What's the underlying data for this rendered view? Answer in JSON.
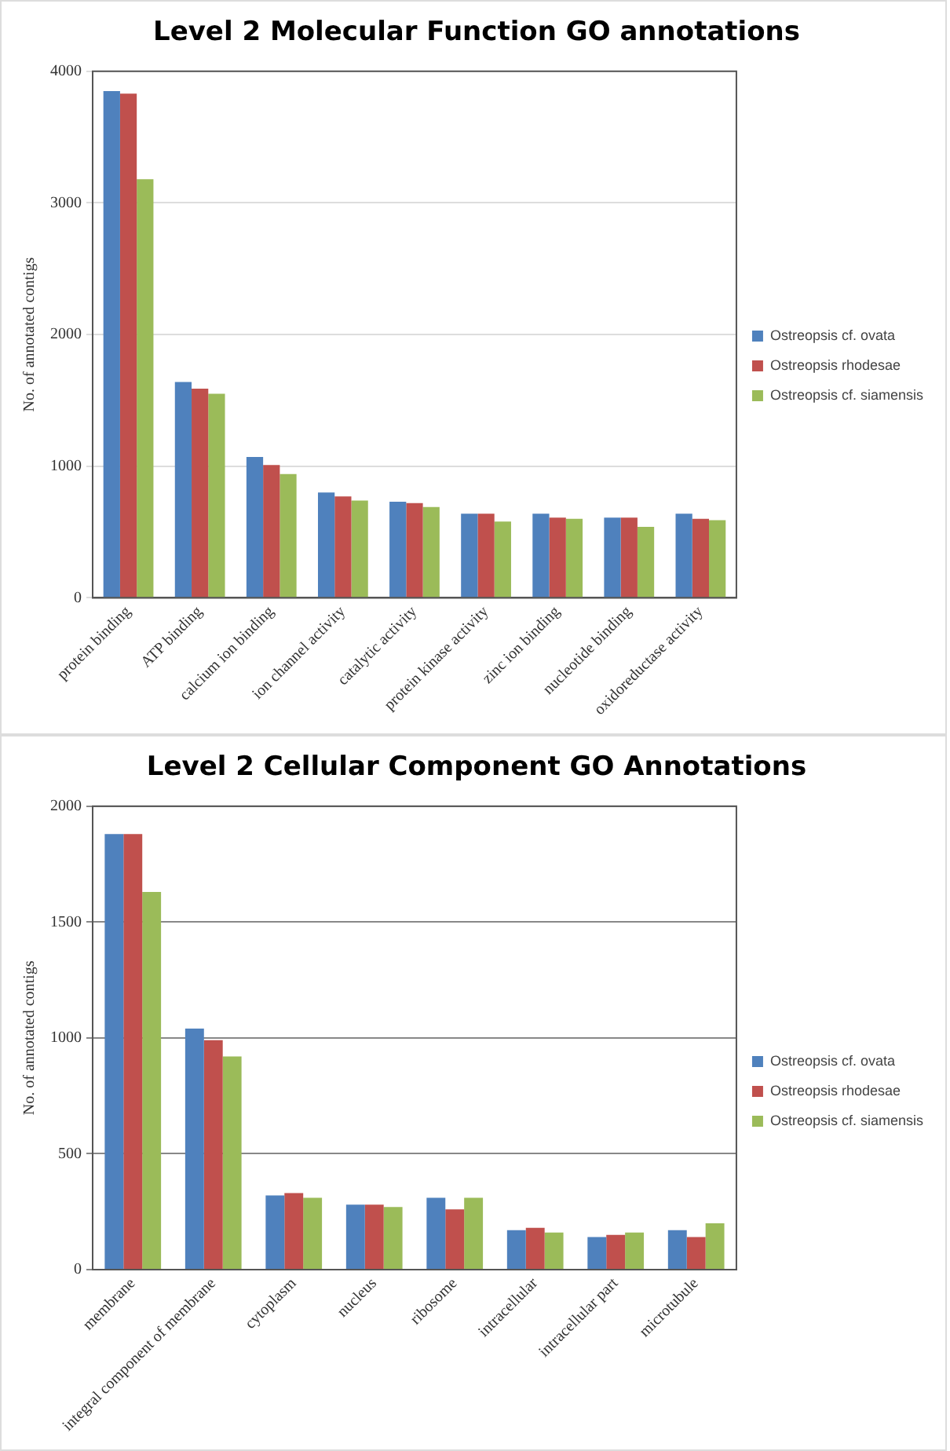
{
  "chart_data": [
    {
      "type": "bar",
      "title": "Level 2 Molecular Function GO annotations",
      "ylabel": "No. of annotated contigs",
      "categories": [
        "protein binding",
        "ATP binding",
        "calcium ion binding",
        "ion channel activity",
        "catalytic activity",
        "protein kinase activity",
        "zinc ion binding",
        "nucleotide binding",
        "oxidoreductase activity"
      ],
      "series": [
        {
          "name": "Ostreopsis cf. ovata",
          "color": "#4f81bd",
          "values": [
            3850,
            1640,
            1070,
            800,
            730,
            640,
            640,
            610,
            640
          ]
        },
        {
          "name": "Ostreopsis rhodesae",
          "color": "#c0504d",
          "values": [
            3830,
            1590,
            1010,
            770,
            720,
            640,
            610,
            610,
            600
          ]
        },
        {
          "name": "Ostreopsis cf. siamensis",
          "color": "#9bbb59",
          "values": [
            3180,
            1550,
            940,
            740,
            690,
            580,
            600,
            540,
            590
          ]
        }
      ],
      "ylim": [
        0,
        4000
      ],
      "yticks": [
        0,
        1000,
        2000,
        3000,
        4000
      ],
      "grid": "y",
      "legend": "right"
    },
    {
      "type": "bar",
      "title": "Level 2 Cellular Component GO Annotations",
      "ylabel": "No. of annotated contigs",
      "categories": [
        "membrane",
        "integral component of membrane",
        "cytoplasm",
        "nucleus",
        "ribosome",
        "intracellular",
        "intracellular part",
        "microtubule"
      ],
      "series": [
        {
          "name": "Ostreopsis cf. ovata",
          "color": "#4f81bd",
          "values": [
            1880,
            1040,
            320,
            280,
            310,
            170,
            140,
            170
          ]
        },
        {
          "name": "Ostreopsis rhodesae",
          "color": "#c0504d",
          "values": [
            1880,
            990,
            330,
            280,
            260,
            180,
            150,
            140
          ]
        },
        {
          "name": "Ostreopsis cf. siamensis",
          "color": "#9bbb59",
          "values": [
            1630,
            920,
            310,
            270,
            310,
            160,
            160,
            200
          ]
        }
      ],
      "ylim": [
        0,
        2000
      ],
      "yticks": [
        0,
        500,
        1000,
        1500,
        2000
      ],
      "grid": "y",
      "legend": "right"
    }
  ]
}
